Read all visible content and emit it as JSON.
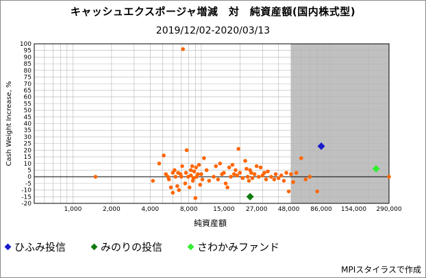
{
  "chart_data": {
    "type": "scatter",
    "title": "キャッシュエクスポージャ増減　対　純資産額(国内株式型)",
    "subtitle": "2019/12/02-2020/03/13",
    "xlabel": "純資産額",
    "ylabel": "Cash Weight Increase, %",
    "xscale": "log",
    "xlim": [
      500,
      290000
    ],
    "ylim": [
      -20,
      100
    ],
    "x_ticks": [
      1000,
      2000,
      4000,
      8000,
      15000,
      27000,
      48000,
      86000,
      154000,
      290000
    ],
    "x_tick_labels": [
      "1,000",
      "2,000",
      "4,000",
      "8,000",
      "15,000",
      "27,000",
      "48,000",
      "86,000",
      "154,000",
      "290,000"
    ],
    "y_ticks": [
      -20,
      -15,
      -10,
      -5,
      0,
      5,
      10,
      15,
      20,
      25,
      30,
      35,
      40,
      45,
      50,
      55,
      60,
      65,
      70,
      75,
      80,
      85,
      90,
      95,
      100
    ],
    "y_tick_labels": [
      "-20",
      "-15",
      "-10",
      "-5",
      "0",
      "5",
      "10",
      "15",
      "20",
      "25",
      "30",
      "35",
      "40",
      "45",
      "50",
      "55",
      "60",
      "65",
      "70",
      "75",
      "80",
      "85",
      "90",
      "95",
      "100"
    ],
    "grid": true,
    "gray_region": {
      "x_from": 50000,
      "x_to": 290000
    },
    "series": [
      {
        "name": "",
        "color": "#ff6600",
        "marker": "circle",
        "x": [
          1500,
          4200,
          4700,
          5100,
          5300,
          5500,
          5600,
          5800,
          6000,
          6000,
          6200,
          6300,
          6500,
          6600,
          6700,
          6900,
          7000,
          7100,
          7200,
          7500,
          7600,
          7700,
          7900,
          8100,
          8300,
          8300,
          8500,
          8600,
          8700,
          8800,
          9000,
          9100,
          9200,
          9400,
          9600,
          9800,
          10000,
          10200,
          10500,
          11000,
          11500,
          12500,
          13000,
          13500,
          14000,
          14500,
          15000,
          15500,
          16000,
          16500,
          17000,
          17500,
          18000,
          18500,
          19000,
          19500,
          20000,
          21000,
          22000,
          22500,
          23000,
          23500,
          24000,
          24500,
          25000,
          26000,
          27000,
          28000,
          29000,
          30000,
          31000,
          32000,
          33000,
          35000,
          37000,
          38000,
          40000,
          42000,
          44000,
          46000,
          48000,
          50000,
          52000,
          55000,
          60000,
          65000,
          70000,
          80000,
          290000
        ],
        "y": [
          0,
          -3,
          10,
          16,
          2,
          0,
          -2,
          -8,
          3,
          -12,
          5,
          0,
          -7,
          3,
          -10,
          2,
          0,
          8,
          96,
          -5,
          3,
          20,
          0,
          -8,
          5,
          1,
          8,
          -3,
          -1,
          4,
          -16,
          7,
          0,
          2,
          9,
          -6,
          2,
          -2,
          14,
          5,
          -3,
          0,
          8,
          -2,
          10,
          2,
          3,
          -5,
          -8,
          7,
          0,
          9,
          2,
          5,
          1,
          21,
          3,
          -1,
          12,
          6,
          0,
          -3,
          5,
          3,
          -1,
          2,
          8,
          0,
          7,
          1,
          3,
          -2,
          4,
          0,
          -2,
          2,
          -1,
          1,
          -3,
          3,
          -11,
          2,
          -4,
          3,
          14,
          -2,
          0,
          -11,
          0
        ]
      },
      {
        "name": "ひふみ投信",
        "color": "#1a1acc",
        "marker": "diamond",
        "x": [
          86000
        ],
        "y": [
          23
        ]
      },
      {
        "name": "みのりの投信",
        "color": "#0f7a0f",
        "marker": "diamond",
        "x": [
          24000
        ],
        "y": [
          -15
        ]
      },
      {
        "name": "さわかみファンド",
        "color": "#33ee33",
        "marker": "diamond",
        "x": [
          230000
        ],
        "y": [
          6
        ]
      }
    ]
  },
  "legend": [
    {
      "label": "ひふみ投信",
      "color": "#1a1acc"
    },
    {
      "label": "みのりの投信",
      "color": "#0f7a0f"
    },
    {
      "label": "さわかみファンド",
      "color": "#33ee33"
    }
  ],
  "footer": "MPIスタイラスで作成"
}
